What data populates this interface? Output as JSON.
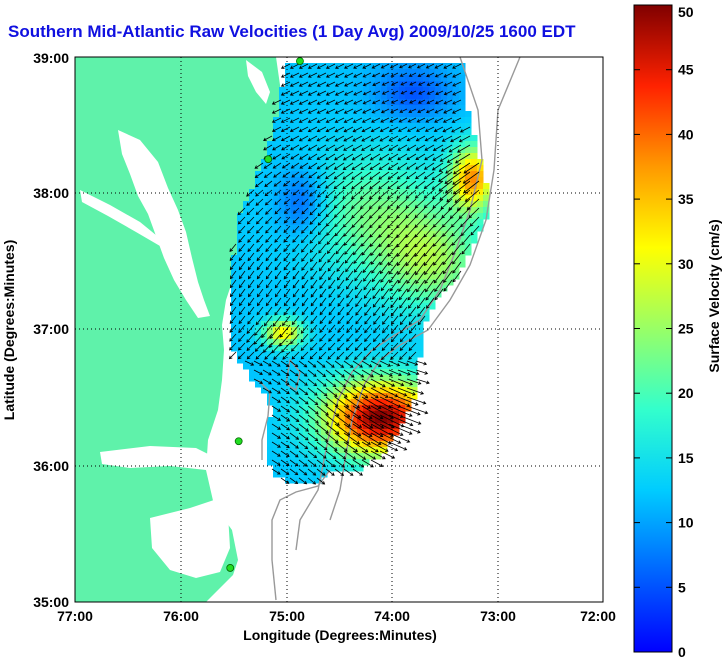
{
  "title": "Southern Mid-Atlantic Raw Velocities (1 Day Avg) 2009/10/25 1600 EDT",
  "xlabel": "Longitude (Degrees:Minutes)",
  "ylabel": "Latitude (Degrees:Minutes)",
  "colorbar_label": "Surface Velocity (cm/s)",
  "x_ticks": [
    "77:00",
    "76:00",
    "75:00",
    "74:00",
    "73:00",
    "72:00"
  ],
  "y_ticks": [
    "39:00",
    "38:00",
    "37:00",
    "36:00",
    "35:00"
  ],
  "colorbar_ticks": [
    "0",
    "5",
    "10",
    "15",
    "20",
    "25",
    "30",
    "35",
    "40",
    "45",
    "50"
  ],
  "colors": {
    "land": "#5ff2aa",
    "ocean": "#ffffff",
    "title": "#1010e0",
    "station": "#22dd22",
    "bathymetry": "#999999"
  },
  "chart_data": {
    "type": "heatmap",
    "xlim": [
      -77,
      -72
    ],
    "ylim": [
      35,
      39
    ],
    "clim": [
      0,
      50
    ],
    "colormap": "jet",
    "grid": true,
    "stations": [
      {
        "lon": -74.87,
        "lat": 38.97
      },
      {
        "lon": -75.17,
        "lat": 38.25
      },
      {
        "lon": -75.45,
        "lat": 36.18
      },
      {
        "lon": -75.53,
        "lat": 35.25
      }
    ]
  }
}
